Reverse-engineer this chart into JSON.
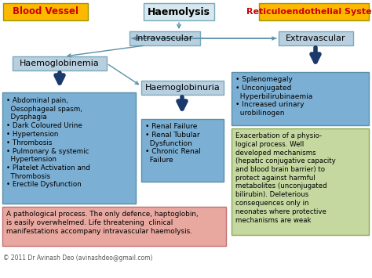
{
  "title": "Haemolysis",
  "bg_color": "#ffffff",
  "header_left": "Blood Vessel",
  "header_right": "Reticuloendothelial System",
  "header_left_bg": "#FFB800",
  "header_right_bg": "#FFB800",
  "header_text_color": "#CC0000",
  "box_intravascular": "Intravascular",
  "box_extravascular": "Extravascular",
  "box_haemoglobinemia": "Haemoglobinemia",
  "box_haemoglobinuria": "Haemoglobinuria",
  "box_small_color": "#b8cfe0",
  "box_small_edge": "#7aaabb",
  "blue_box_color": "#7bafd4",
  "blue_box_edge": "#5a8fa8",
  "green_box_color": "#c5d8a0",
  "green_box_edge": "#8aaa50",
  "red_box_color": "#e8a8a0",
  "red_box_edge": "#c07070",
  "left_bullets": "• Abdominal pain,\n  Oesophageal spasm,\n  Dysphagia\n• Dark Coloured Urine\n• Hypertension\n• Thrombosis\n• Pulmonary & systemic\n  Hypertension\n• Platelet Activation and\n  Thrombosis\n• Erectile Dysfunction",
  "middle_bullets": "• Renal Failure\n• Renal Tubular\n  Dysfunction\n• Chronic Renal\n  Failure",
  "right_top_bullets": "• Splenomegaly\n• Unconjugated\n  Hyperbilirubinaemia\n• Increased urinary\n  urobilinogen",
  "right_bottom_text": "Exacerbation of a physio-\nlogical process. Well\ndeveloped mechanisms\n(hepatic conjugative capacity\nand blood brain barrier) to\nprotect against harmful\nmetabolites (unconjugated\nbilirubin). Deleterious\nconsequences only in\nneonates where protective\nmechanisms are weak",
  "bottom_text": "A pathological process. The only defence, haptoglobin,\nis easily overwhelmed. Life threatening  clinical\nmanifestations accompany intravascular haemolysis.",
  "footer": "© 2011 Dr Avinash Deo (avinashdeo@gmail.com)",
  "arrow_color": "#1a3a6b",
  "thin_arrow_color": "#5a8fa8"
}
